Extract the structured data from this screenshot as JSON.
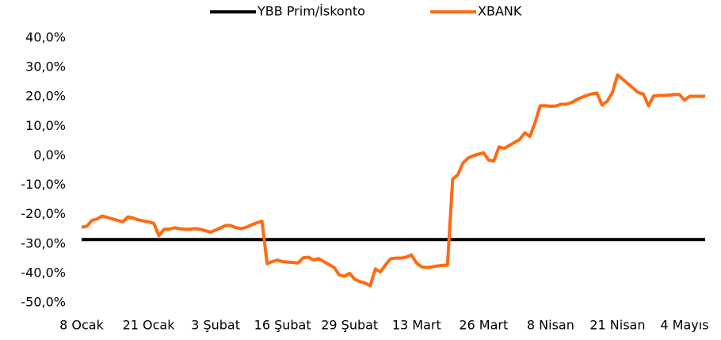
{
  "chart_data": {
    "type": "line",
    "categories": [
      "8 Ocak",
      null,
      null,
      null,
      null,
      null,
      null,
      null,
      null,
      null,
      null,
      null,
      null,
      "21 Ocak",
      null,
      null,
      null,
      null,
      null,
      null,
      null,
      null,
      null,
      null,
      null,
      null,
      "3 Şubat",
      null,
      null,
      null,
      null,
      null,
      null,
      null,
      null,
      null,
      null,
      null,
      null,
      "16 Şubat",
      null,
      null,
      null,
      null,
      null,
      null,
      null,
      null,
      null,
      null,
      null,
      null,
      "29 Şubat",
      null,
      null,
      null,
      null,
      null,
      null,
      null,
      null,
      null,
      null,
      null,
      null,
      "13 Mart",
      null,
      null,
      null,
      null,
      null,
      null,
      null,
      null,
      null,
      null,
      null,
      null,
      "26 Mart",
      null,
      null,
      null,
      null,
      null,
      null,
      null,
      null,
      null,
      null,
      null,
      null,
      "8 Nisan",
      null,
      null,
      null,
      null,
      null,
      null,
      null,
      null,
      null,
      null,
      null,
      null,
      "21 Nisan",
      null,
      null,
      null,
      null,
      null,
      null,
      null,
      null,
      null,
      null,
      null,
      null,
      "4 Mayıs",
      null,
      null,
      null,
      null
    ],
    "series": [
      {
        "name": "YBB Prim/İskonto",
        "color": "#000000",
        "values": [
          -28.5,
          -28.5,
          -28.5,
          -28.5,
          -28.5,
          -28.5,
          -28.5,
          -28.5,
          -28.5,
          -28.5,
          -28.5,
          -28.5,
          -28.5,
          -28.5,
          -28.5,
          -28.5,
          -28.5,
          -28.5,
          -28.5,
          -28.5,
          -28.5,
          -28.5,
          -28.5,
          -28.5,
          -28.5,
          -28.5,
          -28.5,
          -28.5,
          -28.5,
          -28.5,
          -28.5,
          -28.5,
          -28.5,
          -28.5,
          -28.5,
          -28.5,
          -28.5,
          -28.5,
          -28.5,
          -28.5,
          -28.5,
          -28.5,
          -28.5,
          -28.5,
          -28.5,
          -28.5,
          -28.5,
          -28.5,
          -28.5,
          -28.5,
          -28.5,
          -28.5,
          -28.5,
          -28.5,
          -28.5,
          -28.5,
          -28.5,
          -28.5,
          -28.5,
          -28.5,
          -28.5,
          -28.5,
          -28.5,
          -28.5,
          -28.5,
          -28.5,
          -28.5,
          -28.5,
          -28.5,
          -28.5,
          -28.5,
          -28.5,
          -28.5,
          -28.5,
          -28.5,
          -28.5,
          -28.5,
          -28.5,
          -28.5,
          -28.5,
          -28.5,
          -28.5,
          -28.5,
          -28.5,
          -28.5,
          -28.5,
          -28.5,
          -28.5,
          -28.5,
          -28.5,
          -28.5,
          -28.5,
          -28.5,
          -28.5,
          -28.5,
          -28.5,
          -28.5,
          -28.5,
          -28.5,
          -28.5,
          -28.5,
          -28.5,
          -28.5,
          -28.5,
          -28.5,
          -28.5,
          -28.5,
          -28.5,
          -28.5,
          -28.5,
          -28.5,
          -28.5,
          -28.5,
          -28.5,
          -28.5,
          -28.5,
          -28.5,
          -28.5,
          -28.5,
          -28.5,
          -28.5,
          -28.5
        ]
      },
      {
        "name": "XBANK",
        "color": "#ff6a13",
        "values": [
          -24.3,
          -24,
          -22,
          -21.5,
          -20.5,
          -21,
          -21.5,
          -22,
          -22.5,
          -20.8,
          -21.2,
          -21.8,
          -22.2,
          -22.5,
          -23,
          -27.2,
          -25,
          -25,
          -24.5,
          -24.8,
          -25,
          -25,
          -24.8,
          -25,
          -25.5,
          -26,
          -25.3,
          -24.5,
          -23.7,
          -23.8,
          -24.5,
          -24.8,
          -24.3,
          -23.5,
          -22.8,
          -22.3,
          -36.7,
          -36,
          -35.5,
          -36,
          -36.2,
          -36.3,
          -36.5,
          -34.7,
          -34.5,
          -35.5,
          -35,
          -36,
          -37,
          -38,
          -40.5,
          -41,
          -40,
          -42,
          -42.8,
          -43.3,
          -44.2,
          -38.5,
          -39.5,
          -37,
          -35,
          -34.8,
          -34.8,
          -34.5,
          -33.7,
          -36.5,
          -37.8,
          -38,
          -37.8,
          -37.5,
          -37.3,
          -37.2,
          -8,
          -6.5,
          -2.5,
          -0.8,
          0,
          0.5,
          1,
          -1.5,
          -1.8,
          3,
          2.5,
          3.5,
          4.5,
          5.5,
          7.8,
          6.5,
          11.3,
          17,
          17,
          16.8,
          16.9,
          17.5,
          17.5,
          18,
          19,
          19.8,
          20.5,
          21,
          21.3,
          17.2,
          18.5,
          21.5,
          27.5,
          26,
          24.5,
          23,
          21.5,
          21,
          17,
          20.3,
          20.5,
          20.5,
          20.6,
          20.8,
          20.8,
          18.9,
          20.2,
          20.2,
          20.2,
          20.2
        ]
      }
    ],
    "ylim": [
      -50,
      40
    ],
    "yticks": [
      {
        "value": -50,
        "label": "-50,0%"
      },
      {
        "value": -40,
        "label": "-40,0%"
      },
      {
        "value": -30,
        "label": "-30,0%"
      },
      {
        "value": -20,
        "label": "-20,0%"
      },
      {
        "value": -10,
        "label": "-10,0%"
      },
      {
        "value": 0,
        "label": "0,0%"
      },
      {
        "value": 10,
        "label": "10,0%"
      },
      {
        "value": 20,
        "label": "20,0%"
      },
      {
        "value": 30,
        "label": "30,0%"
      },
      {
        "value": 40,
        "label": "40,0%"
      }
    ],
    "grid": false,
    "legend": "top"
  }
}
